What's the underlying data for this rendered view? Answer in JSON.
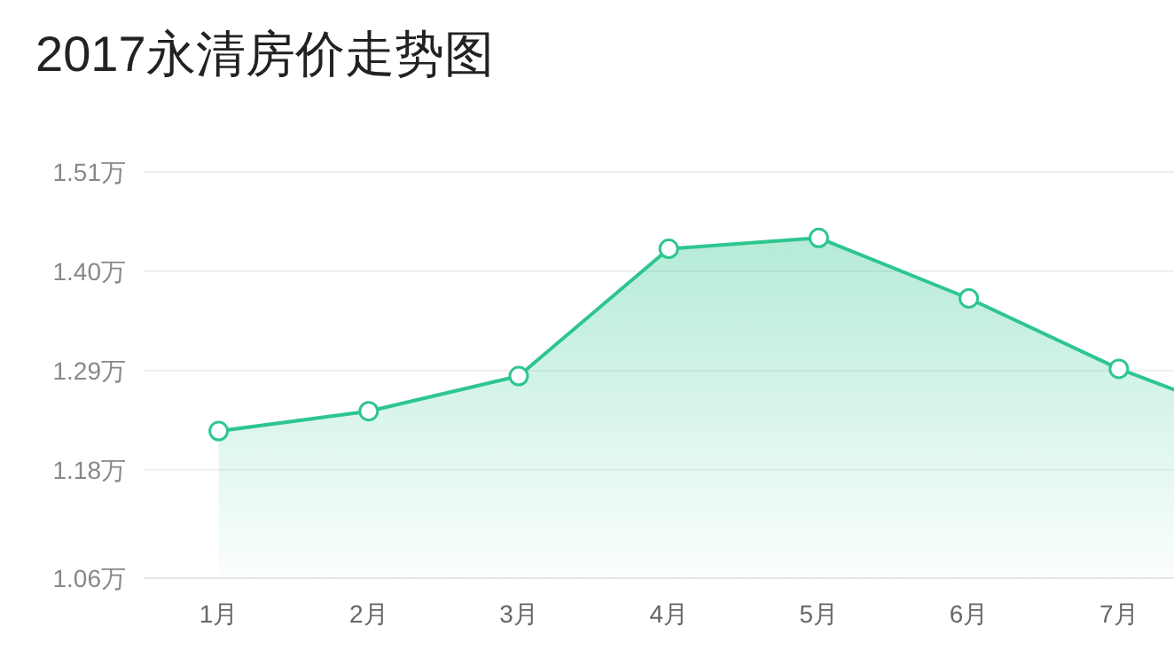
{
  "chart_data": {
    "type": "area",
    "title": "2017永清房价走势图",
    "categories": [
      "1月",
      "2月",
      "3月",
      "4月",
      "5月",
      "6月",
      "7月",
      null
    ],
    "series": [
      {
        "color": "#2dc68f",
        "values": [
          1.223,
          1.245,
          1.284,
          1.425,
          1.437,
          1.37,
          1.292,
          1.229
        ]
      }
    ],
    "ylim": [
      1.06,
      1.51
    ],
    "yticks": [
      {
        "value": 1.06,
        "label": "1.06万"
      },
      {
        "value": 1.18,
        "label": "1.18万"
      },
      {
        "value": 1.29,
        "label": "1.29万"
      },
      {
        "value": 1.4,
        "label": "1.40万"
      },
      {
        "value": 1.51,
        "label": "1.51万"
      }
    ],
    "grid": "y",
    "marker": "circle"
  }
}
